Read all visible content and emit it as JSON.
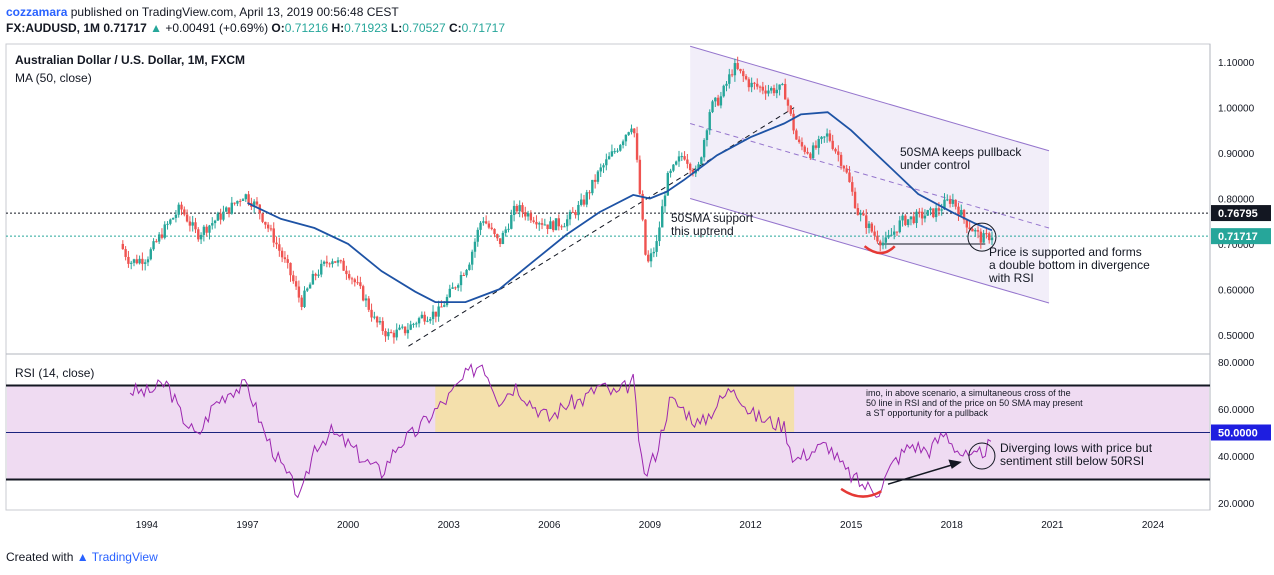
{
  "header": {
    "author": "cozzamara",
    "published": "published on TradingView.com, April 13, 2019 00:56:48 CEST",
    "symbol": "FX:AUDUSD, 1M",
    "last": "0.71717",
    "change_arrow": "▲",
    "change": "+0.00491 (+0.69%)",
    "o_label": "O:",
    "o": "0.71216",
    "h_label": "H:",
    "h": "0.71923",
    "l_label": "L:",
    "l": "0.70527",
    "c_label": "C:",
    "c": "0.71717"
  },
  "footer": {
    "created_with": "Created with",
    "brand": "TradingView"
  },
  "colors": {
    "up": "#26a69a",
    "down": "#ef5350",
    "ma": "#1e53a5",
    "rsi": "#9c27b0",
    "channel": "#9575cd",
    "band": "#e1bee7",
    "highlight": "#f5e0a0"
  },
  "chart_data": [
    {
      "type": "candlestick",
      "title": "Australian Dollar / U.S. Dollar, 1M, FXCM",
      "indicator_label": "MA (50, close)",
      "y_ticks": [
        "1.10000",
        "1.00000",
        "0.90000",
        "0.80000",
        "0.70000",
        "0.60000",
        "0.50000"
      ],
      "y_tick_values": [
        1.1,
        1.0,
        0.9,
        0.8,
        0.7,
        0.6,
        0.5
      ],
      "ylim": [
        0.46,
        1.14
      ],
      "x_ticks": [
        "1994",
        "1997",
        "2000",
        "2003",
        "2006",
        "2009",
        "2012",
        "2015",
        "2018",
        "2021",
        "2024"
      ],
      "x_tick_values": [
        1994,
        1997,
        2000,
        2003,
        2006,
        2009,
        2012,
        2015,
        2018,
        2021,
        2024
      ],
      "xlim": [
        1989.8,
        2025.7
      ],
      "price_points": [
        [
          1993.2,
          0.7
        ],
        [
          1993.5,
          0.66
        ],
        [
          1994.0,
          0.67
        ],
        [
          1994.5,
          0.73
        ],
        [
          1995.0,
          0.78
        ],
        [
          1995.5,
          0.72
        ],
        [
          1996.0,
          0.75
        ],
        [
          1996.5,
          0.78
        ],
        [
          1996.9,
          0.81
        ],
        [
          1997.3,
          0.78
        ],
        [
          1997.8,
          0.71
        ],
        [
          1998.3,
          0.63
        ],
        [
          1998.6,
          0.57
        ],
        [
          1999.0,
          0.63
        ],
        [
          1999.5,
          0.67
        ],
        [
          2000.0,
          0.64
        ],
        [
          2000.5,
          0.58
        ],
        [
          2000.8,
          0.53
        ],
        [
          2001.2,
          0.5
        ],
        [
          2001.7,
          0.51
        ],
        [
          2002.2,
          0.54
        ],
        [
          2002.7,
          0.55
        ],
        [
          2003.2,
          0.61
        ],
        [
          2003.6,
          0.66
        ],
        [
          2004.0,
          0.76
        ],
        [
          2004.5,
          0.7
        ],
        [
          2005.0,
          0.78
        ],
        [
          2005.5,
          0.76
        ],
        [
          2006.0,
          0.74
        ],
        [
          2006.5,
          0.75
        ],
        [
          2007.0,
          0.79
        ],
        [
          2007.5,
          0.86
        ],
        [
          2008.0,
          0.91
        ],
        [
          2008.5,
          0.97
        ],
        [
          2008.9,
          0.65
        ],
        [
          2009.2,
          0.7
        ],
        [
          2009.5,
          0.84
        ],
        [
          2010.0,
          0.9
        ],
        [
          2010.4,
          0.85
        ],
        [
          2010.8,
          1.0
        ],
        [
          2011.1,
          1.02
        ],
        [
          2011.5,
          1.09
        ],
        [
          2012.0,
          1.05
        ],
        [
          2012.5,
          1.04
        ],
        [
          2013.0,
          1.04
        ],
        [
          2013.4,
          0.92
        ],
        [
          2013.8,
          0.9
        ],
        [
          2014.3,
          0.94
        ],
        [
          2014.8,
          0.87
        ],
        [
          2015.2,
          0.77
        ],
        [
          2015.7,
          0.72
        ],
        [
          2016.0,
          0.7
        ],
        [
          2016.5,
          0.75
        ],
        [
          2017.0,
          0.76
        ],
        [
          2017.5,
          0.77
        ],
        [
          2018.0,
          0.8
        ],
        [
          2018.4,
          0.75
        ],
        [
          2018.9,
          0.71
        ],
        [
          2019.2,
          0.72
        ]
      ],
      "ma_50": [
        [
          1997.0,
          0.79
        ],
        [
          1998.0,
          0.755
        ],
        [
          1999.0,
          0.735
        ],
        [
          2000.0,
          0.7
        ],
        [
          2001.0,
          0.64
        ],
        [
          2002.0,
          0.595
        ],
        [
          2002.6,
          0.572
        ],
        [
          2003.5,
          0.572
        ],
        [
          2004.5,
          0.6
        ],
        [
          2005.5,
          0.66
        ],
        [
          2006.5,
          0.72
        ],
        [
          2007.5,
          0.77
        ],
        [
          2008.5,
          0.808
        ],
        [
          2009.0,
          0.8
        ],
        [
          2009.5,
          0.815
        ],
        [
          2010.0,
          0.84
        ],
        [
          2011.0,
          0.895
        ],
        [
          2012.0,
          0.935
        ],
        [
          2013.0,
          0.965
        ],
        [
          2013.5,
          0.985
        ],
        [
          2014.3,
          0.99
        ],
        [
          2015.0,
          0.95
        ],
        [
          2016.0,
          0.88
        ],
        [
          2017.0,
          0.81
        ],
        [
          2018.0,
          0.77
        ],
        [
          2018.7,
          0.745
        ],
        [
          2019.2,
          0.73
        ]
      ],
      "last_price_label": "0.71717",
      "level_label": "0.76795",
      "level_value": 0.76795,
      "last_price_value": 0.71717
    },
    {
      "type": "line",
      "indicator_label": "RSI (14, close)",
      "y_ticks": [
        "80.0000",
        "60.0000",
        "40.0000",
        "20.0000"
      ],
      "y_tick_values": [
        80,
        60,
        40,
        20
      ],
      "ylim": [
        17,
        83
      ],
      "bands": [
        30,
        50,
        70
      ],
      "mid_label": "50.0000",
      "rsi": [
        [
          1993.5,
          68
        ],
        [
          1994.0,
          67
        ],
        [
          1994.6,
          71
        ],
        [
          1995.0,
          58
        ],
        [
          1995.5,
          48
        ],
        [
          1996.0,
          62
        ],
        [
          1996.5,
          68
        ],
        [
          1997.0,
          70
        ],
        [
          1997.5,
          50
        ],
        [
          1998.0,
          36
        ],
        [
          1998.6,
          22
        ],
        [
          1999.0,
          44
        ],
        [
          1999.5,
          50
        ],
        [
          2000.0,
          45
        ],
        [
          2000.5,
          38
        ],
        [
          2001.0,
          33
        ],
        [
          2001.5,
          45
        ],
        [
          2002.0,
          50
        ],
        [
          2002.5,
          58
        ],
        [
          2003.0,
          65
        ],
        [
          2003.5,
          74
        ],
        [
          2004.0,
          80
        ],
        [
          2004.5,
          64
        ],
        [
          2005.0,
          70
        ],
        [
          2005.5,
          62
        ],
        [
          2006.0,
          56
        ],
        [
          2006.5,
          62
        ],
        [
          2007.0,
          64
        ],
        [
          2007.5,
          70
        ],
        [
          2008.0,
          66
        ],
        [
          2008.5,
          72
        ],
        [
          2008.8,
          30
        ],
        [
          2009.2,
          42
        ],
        [
          2009.6,
          64
        ],
        [
          2010.0,
          60
        ],
        [
          2010.5,
          53
        ],
        [
          2011.0,
          62
        ],
        [
          2011.5,
          70
        ],
        [
          2012.0,
          58
        ],
        [
          2012.5,
          55
        ],
        [
          2013.0,
          53
        ],
        [
          2013.3,
          38
        ],
        [
          2013.8,
          42
        ],
        [
          2014.3,
          45
        ],
        [
          2014.8,
          34
        ],
        [
          2015.3,
          28
        ],
        [
          2015.8,
          25
        ],
        [
          2016.3,
          38
        ],
        [
          2016.8,
          45
        ],
        [
          2017.3,
          42
        ],
        [
          2017.8,
          50
        ],
        [
          2018.2,
          42
        ],
        [
          2018.6,
          38
        ],
        [
          2019.0,
          43
        ],
        [
          2019.2,
          45
        ]
      ],
      "annotations": {
        "sma_support": [
          "50SMA support",
          "this uptrend"
        ],
        "sma_pullback": [
          "50SMA keeps pullback",
          "under control"
        ],
        "double_bottom": [
          "Price is supported and forms",
          "a double bottom in divergence",
          "with RSI"
        ],
        "imo": [
          "imo, in above scenario, a simultaneous cross of the",
          "50 line in RSI and of the price on 50 SMA may present",
          "a ST opportunity for a pullback"
        ],
        "diverging": [
          "Diverging lows with price but",
          "sentiment still below 50RSI"
        ]
      }
    }
  ]
}
